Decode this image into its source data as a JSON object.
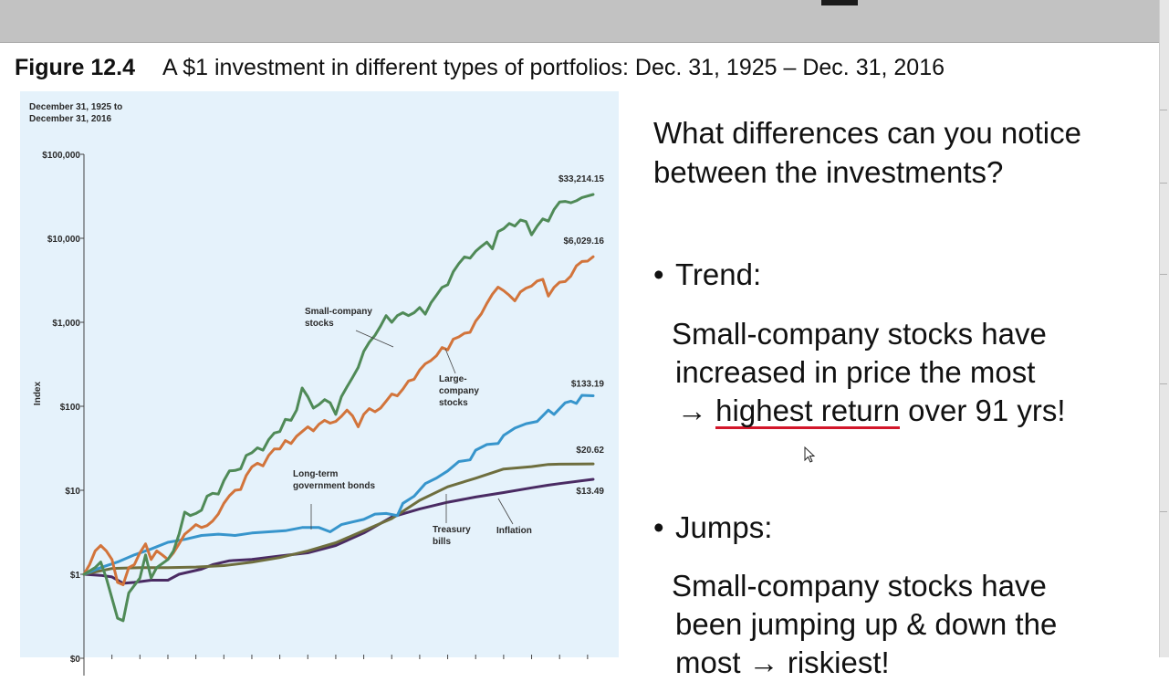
{
  "caption": {
    "figure_label": "Figure 12.4",
    "text": "A $1 investment in different types of portfolios: Dec. 31, 1925 – Dec. 31, 2016"
  },
  "chart_data": {
    "type": "line",
    "period_label_line1": "December 31, 1925 to",
    "period_label_line2": "December 31, 2016",
    "ylabel": "Index",
    "yscale": "log",
    "ylim": [
      0.1,
      100000
    ],
    "xlim": [
      1925,
      2016
    ],
    "y_ticks": [
      {
        "value": 100000,
        "label": "$100,000"
      },
      {
        "value": 10000,
        "label": "$10,000"
      },
      {
        "value": 1000,
        "label": "$1,000"
      },
      {
        "value": 100,
        "label": "$100"
      },
      {
        "value": 10,
        "label": "$10"
      },
      {
        "value": 1,
        "label": "$1"
      },
      {
        "value": 0.1,
        "label": "$0"
      }
    ],
    "series": [
      {
        "key": "small",
        "color": "#4f8a57",
        "end_label": "$33,214.15",
        "label_lines": [
          "Small-company",
          "stocks"
        ],
        "points": [
          [
            1925,
            1
          ],
          [
            1927,
            1.2
          ],
          [
            1928,
            1.4
          ],
          [
            1929,
            0.9
          ],
          [
            1931,
            0.3
          ],
          [
            1932,
            0.28
          ],
          [
            1933,
            0.6
          ],
          [
            1935,
            0.9
          ],
          [
            1936,
            1.7
          ],
          [
            1937,
            0.9
          ],
          [
            1938,
            1.2
          ],
          [
            1940,
            1.5
          ],
          [
            1941,
            1.9
          ],
          [
            1942,
            3
          ],
          [
            1943,
            5.5
          ],
          [
            1944,
            5
          ],
          [
            1945,
            5.3
          ],
          [
            1946,
            5.8
          ],
          [
            1947,
            8.5
          ],
          [
            1948,
            9.2
          ],
          [
            1949,
            9
          ],
          [
            1950,
            13
          ],
          [
            1951,
            17
          ],
          [
            1952,
            17.2
          ],
          [
            1953,
            18
          ],
          [
            1954,
            26
          ],
          [
            1955,
            28
          ],
          [
            1956,
            32
          ],
          [
            1957,
            30
          ],
          [
            1958,
            40
          ],
          [
            1959,
            48
          ],
          [
            1960,
            50
          ],
          [
            1961,
            70
          ],
          [
            1962,
            68
          ],
          [
            1963,
            90
          ],
          [
            1964,
            165
          ],
          [
            1965,
            130
          ],
          [
            1966,
            95
          ],
          [
            1967,
            105
          ],
          [
            1968,
            120
          ],
          [
            1969,
            110
          ],
          [
            1970,
            80
          ],
          [
            1971,
            130
          ],
          [
            1972,
            170
          ],
          [
            1973,
            220
          ],
          [
            1974,
            290
          ],
          [
            1975,
            450
          ],
          [
            1976,
            580
          ],
          [
            1977,
            700
          ],
          [
            1978,
            900
          ],
          [
            1979,
            1200
          ],
          [
            1980,
            1000
          ],
          [
            1981,
            1200
          ],
          [
            1982,
            1300
          ],
          [
            1983,
            1200
          ],
          [
            1984,
            1300
          ],
          [
            1985,
            1500
          ],
          [
            1986,
            1250
          ],
          [
            1987,
            1700
          ],
          [
            1988,
            2100
          ],
          [
            1989,
            2600
          ],
          [
            1990,
            2800
          ],
          [
            1991,
            4000
          ],
          [
            1992,
            5000
          ],
          [
            1993,
            6000
          ],
          [
            1994,
            5800
          ],
          [
            1995,
            7000
          ],
          [
            1996,
            8000
          ],
          [
            1997,
            9000
          ],
          [
            1998,
            7500
          ],
          [
            1999,
            12000
          ],
          [
            2000,
            13000
          ],
          [
            2001,
            15000
          ],
          [
            2002,
            14000
          ],
          [
            2003,
            16500
          ],
          [
            2004,
            15800
          ],
          [
            2005,
            11000
          ],
          [
            2006,
            14000
          ],
          [
            2007,
            17000
          ],
          [
            2008,
            16000
          ],
          [
            2009,
            22000
          ],
          [
            2010,
            27000
          ],
          [
            2011,
            27500
          ],
          [
            2012,
            26500
          ],
          [
            2013,
            28000
          ],
          [
            2014,
            30500
          ],
          [
            2016,
            33214.15
          ]
        ]
      },
      {
        "key": "large",
        "color": "#d2743b",
        "end_label": "$6,029.16",
        "label_lines": [
          "Large-",
          "company",
          "stocks"
        ],
        "points": [
          [
            1925,
            1
          ],
          [
            1926,
            1.3
          ],
          [
            1927,
            1.9
          ],
          [
            1928,
            2.2
          ],
          [
            1929,
            1.9
          ],
          [
            1930,
            1.5
          ],
          [
            1931,
            0.8
          ],
          [
            1932,
            0.75
          ],
          [
            1933,
            1.2
          ],
          [
            1934,
            1.3
          ],
          [
            1935,
            1.8
          ],
          [
            1936,
            2.3
          ],
          [
            1937,
            1.5
          ],
          [
            1938,
            1.9
          ],
          [
            1939,
            1.7
          ],
          [
            1940,
            1.5
          ],
          [
            1941,
            1.8
          ],
          [
            1942,
            2.3
          ],
          [
            1943,
            3.0
          ],
          [
            1944,
            3.4
          ],
          [
            1945,
            3.9
          ],
          [
            1946,
            3.6
          ],
          [
            1947,
            3.8
          ],
          [
            1948,
            4.3
          ],
          [
            1949,
            5.2
          ],
          [
            1950,
            7.0
          ],
          [
            1951,
            8.6
          ],
          [
            1952,
            10.0
          ],
          [
            1953,
            10.2
          ],
          [
            1954,
            15
          ],
          [
            1955,
            19
          ],
          [
            1956,
            21
          ],
          [
            1957,
            19.5
          ],
          [
            1958,
            26
          ],
          [
            1959,
            31
          ],
          [
            1960,
            31
          ],
          [
            1961,
            39
          ],
          [
            1962,
            36
          ],
          [
            1963,
            44
          ],
          [
            1964,
            50
          ],
          [
            1965,
            57
          ],
          [
            1966,
            51
          ],
          [
            1967,
            61
          ],
          [
            1968,
            68
          ],
          [
            1969,
            63
          ],
          [
            1970,
            66
          ],
          [
            1971,
            76
          ],
          [
            1972,
            90
          ],
          [
            1973,
            77
          ],
          [
            1974,
            57
          ],
          [
            1975,
            80
          ],
          [
            1976,
            94
          ],
          [
            1977,
            86
          ],
          [
            1978,
            95
          ],
          [
            1979,
            115
          ],
          [
            1980,
            140
          ],
          [
            1981,
            133
          ],
          [
            1982,
            160
          ],
          [
            1983,
            200
          ],
          [
            1984,
            210
          ],
          [
            1985,
            270
          ],
          [
            1986,
            320
          ],
          [
            1987,
            350
          ],
          [
            1988,
            400
          ],
          [
            1989,
            500
          ],
          [
            1990,
            470
          ],
          [
            1991,
            630
          ],
          [
            1992,
            670
          ],
          [
            1993,
            740
          ],
          [
            1994,
            760
          ],
          [
            1995,
            1030
          ],
          [
            1996,
            1260
          ],
          [
            1997,
            1680
          ],
          [
            1998,
            2160
          ],
          [
            1999,
            2620
          ],
          [
            2000,
            2380
          ],
          [
            2001,
            2100
          ],
          [
            2002,
            1800
          ],
          [
            2003,
            2300
          ],
          [
            2004,
            2550
          ],
          [
            2005,
            2700
          ],
          [
            2006,
            3100
          ],
          [
            2007,
            3250
          ],
          [
            2008,
            2050
          ],
          [
            2009,
            2600
          ],
          [
            2010,
            3000
          ],
          [
            2011,
            3050
          ],
          [
            2012,
            3550
          ],
          [
            2013,
            4700
          ],
          [
            2014,
            5300
          ],
          [
            2015,
            5350
          ],
          [
            2016,
            6029.16
          ]
        ]
      },
      {
        "key": "govt",
        "color": "#3795cc",
        "end_label": "$133.19",
        "label_lines": [
          "Long-term",
          "government bonds"
        ],
        "points": [
          [
            1925,
            1
          ],
          [
            1928,
            1.2
          ],
          [
            1931,
            1.4
          ],
          [
            1934,
            1.7
          ],
          [
            1937,
            2.0
          ],
          [
            1940,
            2.4
          ],
          [
            1943,
            2.6
          ],
          [
            1946,
            2.9
          ],
          [
            1949,
            3.0
          ],
          [
            1952,
            2.9
          ],
          [
            1955,
            3.1
          ],
          [
            1958,
            3.2
          ],
          [
            1961,
            3.3
          ],
          [
            1964,
            3.6
          ],
          [
            1967,
            3.6
          ],
          [
            1969,
            3.2
          ],
          [
            1971,
            3.9
          ],
          [
            1973,
            4.2
          ],
          [
            1975,
            4.5
          ],
          [
            1977,
            5.2
          ],
          [
            1979,
            5.3
          ],
          [
            1981,
            5.0
          ],
          [
            1982,
            7.0
          ],
          [
            1984,
            8.5
          ],
          [
            1986,
            12
          ],
          [
            1988,
            14
          ],
          [
            1990,
            17
          ],
          [
            1992,
            22
          ],
          [
            1994,
            23
          ],
          [
            1995,
            30
          ],
          [
            1997,
            35
          ],
          [
            1999,
            36
          ],
          [
            2000,
            45
          ],
          [
            2002,
            55
          ],
          [
            2004,
            62
          ],
          [
            2006,
            66
          ],
          [
            2008,
            90
          ],
          [
            2009,
            80
          ],
          [
            2011,
            110
          ],
          [
            2012,
            115
          ],
          [
            2013,
            108
          ],
          [
            2014,
            135
          ],
          [
            2016,
            133.19
          ]
        ]
      },
      {
        "key": "tbills",
        "color": "#6e6e3e",
        "end_label": "$20.62",
        "label_lines": [
          "Treasury",
          "bills"
        ],
        "points": [
          [
            1925,
            1
          ],
          [
            1930,
            1.17
          ],
          [
            1935,
            1.2
          ],
          [
            1940,
            1.2
          ],
          [
            1945,
            1.22
          ],
          [
            1950,
            1.27
          ],
          [
            1955,
            1.39
          ],
          [
            1960,
            1.58
          ],
          [
            1965,
            1.9
          ],
          [
            1970,
            2.37
          ],
          [
            1975,
            3.3
          ],
          [
            1980,
            4.6
          ],
          [
            1985,
            7.6
          ],
          [
            1990,
            11.0
          ],
          [
            1995,
            13.9
          ],
          [
            2000,
            17.9
          ],
          [
            2005,
            19.1
          ],
          [
            2008,
            20.3
          ],
          [
            2010,
            20.45
          ],
          [
            2016,
            20.62
          ]
        ]
      },
      {
        "key": "inflation",
        "color": "#4a2b63",
        "end_label": "$13.49",
        "label_lines": [
          "Inflation"
        ],
        "points": [
          [
            1925,
            1
          ],
          [
            1928,
            0.97
          ],
          [
            1930,
            0.93
          ],
          [
            1932,
            0.78
          ],
          [
            1934,
            0.8
          ],
          [
            1937,
            0.85
          ],
          [
            1940,
            0.85
          ],
          [
            1942,
            1.0
          ],
          [
            1946,
            1.15
          ],
          [
            1948,
            1.3
          ],
          [
            1951,
            1.45
          ],
          [
            1955,
            1.5
          ],
          [
            1960,
            1.65
          ],
          [
            1965,
            1.8
          ],
          [
            1970,
            2.2
          ],
          [
            1975,
            3.1
          ],
          [
            1980,
            4.8
          ],
          [
            1985,
            6.0
          ],
          [
            1990,
            7.2
          ],
          [
            1995,
            8.3
          ],
          [
            2000,
            9.4
          ],
          [
            2005,
            10.7
          ],
          [
            2008,
            11.5
          ],
          [
            2010,
            12.0
          ],
          [
            2016,
            13.49
          ]
        ]
      }
    ]
  },
  "right": {
    "question": "What differences can you notice between the investments?",
    "bullet1_title": "Trend:",
    "bullet1_line1": "Small-company stocks have",
    "bullet1_line2": "increased in price the most",
    "bullet1_arrow": "→",
    "bullet1_highlight": "highest return",
    "bullet1_tail": "over 91 yrs!",
    "bullet2_title": "Jumps:",
    "bullet2_line1": "Small-company stocks have",
    "bullet2_line2": "been jumping up & down the",
    "bullet2_line3": "most → riskiest!"
  }
}
